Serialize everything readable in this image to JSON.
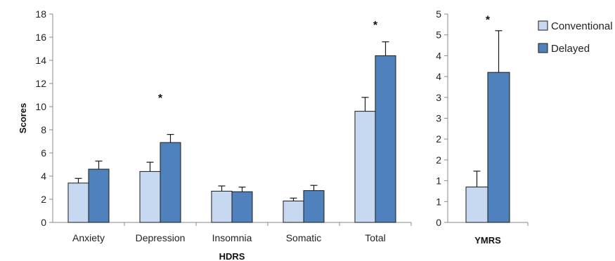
{
  "chart_data": [
    {
      "type": "bar",
      "xlabel": "HDRS",
      "ylabel": "Scores",
      "ylim": [
        0,
        18
      ],
      "yticks": [
        0,
        2,
        4,
        6,
        8,
        10,
        12,
        14,
        16,
        18
      ],
      "categories": [
        "Anxiety",
        "Depression",
        "Insomnia",
        "Somatic",
        "Total"
      ],
      "series": [
        {
          "name": "Conventional",
          "color": "#c6d9f1",
          "values": [
            3.4,
            4.4,
            2.7,
            1.85,
            9.6
          ],
          "errors": [
            0.4,
            0.8,
            0.45,
            0.25,
            1.2
          ]
        },
        {
          "name": "Delayed",
          "color": "#4f81bd",
          "values": [
            4.6,
            6.9,
            2.65,
            2.75,
            14.4
          ],
          "errors": [
            0.7,
            0.7,
            0.4,
            0.45,
            1.2
          ]
        }
      ],
      "significance": [
        {
          "category": "Depression",
          "label": "*",
          "value": 10.8
        },
        {
          "category": "Total",
          "label": "*",
          "value": 17.1
        }
      ]
    },
    {
      "type": "bar",
      "xlabel": "YMRS",
      "ylim": [
        0,
        5
      ],
      "yticks": [
        0,
        0.5,
        1,
        1.5,
        2,
        2.5,
        3,
        3.5,
        4,
        4.5,
        5
      ],
      "ytick_labels": [
        "0",
        "1",
        "1",
        "2",
        "2",
        "3",
        "3",
        "4",
        "4",
        "5",
        "5"
      ],
      "categories": [
        ""
      ],
      "series": [
        {
          "name": "Conventional",
          "color": "#c6d9f1",
          "values": [
            0.85
          ],
          "errors": [
            0.38
          ]
        },
        {
          "name": "Delayed",
          "color": "#4f81bd",
          "values": [
            3.6
          ],
          "errors": [
            1.0
          ]
        }
      ],
      "significance": [
        {
          "category": "",
          "label": "*",
          "value": 4.87
        }
      ]
    }
  ],
  "legend": {
    "placement": "right",
    "items": [
      {
        "name": "Conventional",
        "color": "#c6d9f1"
      },
      {
        "name": "Delayed",
        "color": "#4f81bd"
      }
    ]
  }
}
